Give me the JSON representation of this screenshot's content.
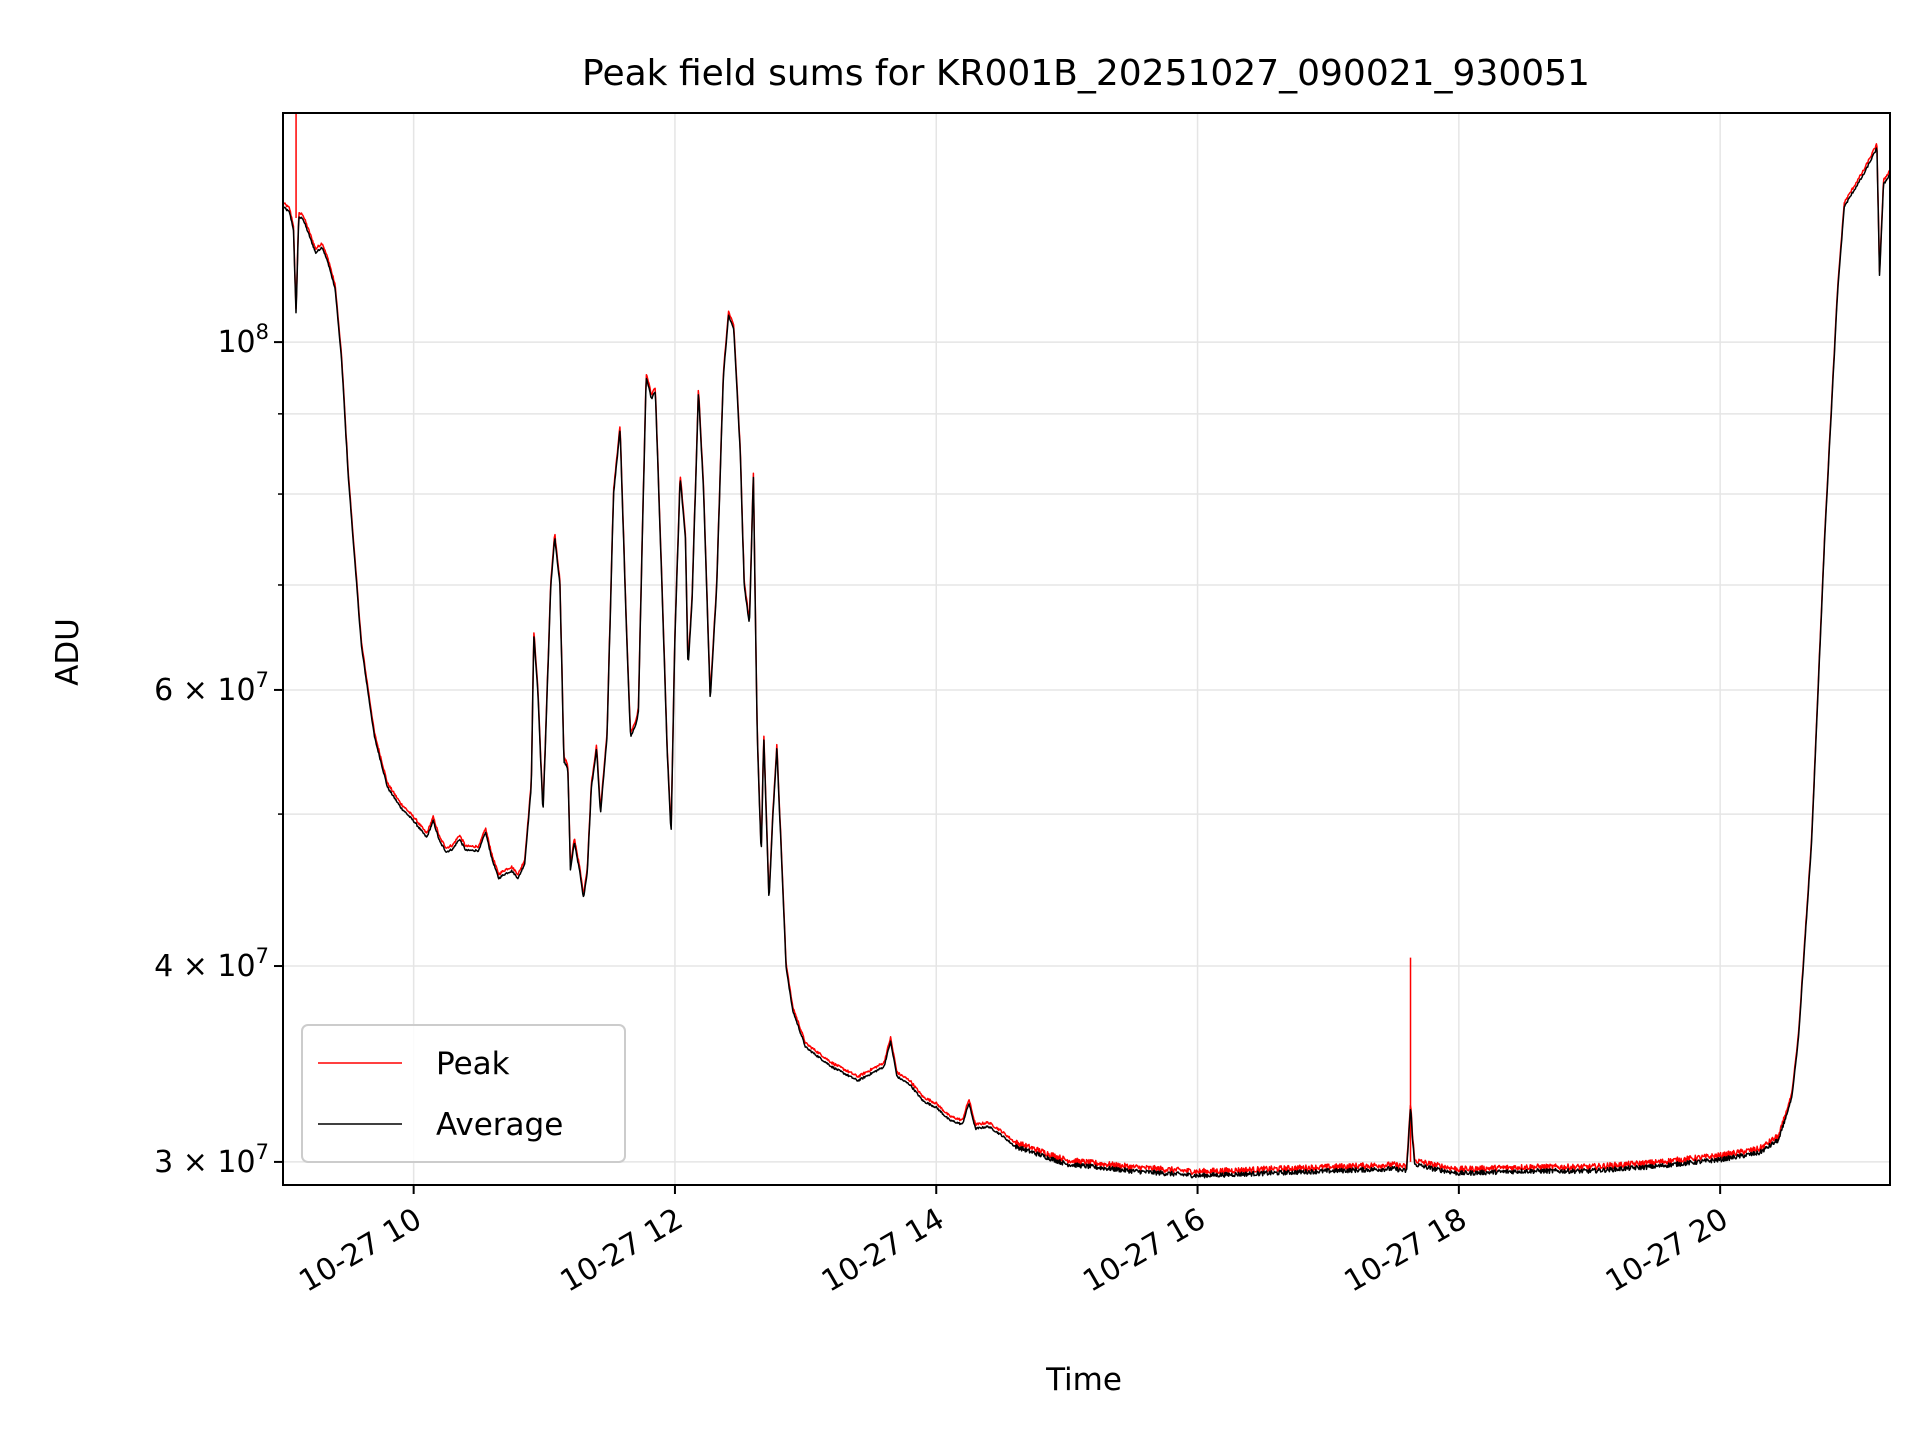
{
  "chart_data": {
    "type": "line",
    "title": "Peak field sums for KR001B_20251027_090021_930051",
    "xlabel": "Time",
    "ylabel": "ADU",
    "yscale": "log",
    "xlim": [
      9.0,
      21.3
    ],
    "ylim": [
      29000000,
      140000000
    ],
    "grid": true,
    "legend_position": "lower-left",
    "x_ticks": [
      {
        "value": 10,
        "label": "10-27 10"
      },
      {
        "value": 12,
        "label": "10-27 12"
      },
      {
        "value": 14,
        "label": "10-27 14"
      },
      {
        "value": 16,
        "label": "10-27 16"
      },
      {
        "value": 18,
        "label": "10-27 18"
      },
      {
        "value": 20,
        "label": "10-27 20"
      }
    ],
    "y_ticks": [
      {
        "value": 100000000,
        "base": "10",
        "exp": "8"
      },
      {
        "value": 60000000,
        "base": "6 × 10",
        "exp": "7"
      },
      {
        "value": 40000000,
        "base": "4 × 10",
        "exp": "7"
      },
      {
        "value": 30000000,
        "base": "3 × 10",
        "exp": "7"
      }
    ],
    "y_minor_ticks": [
      50000000,
      70000000,
      80000000,
      90000000
    ],
    "average_curve": [
      [
        9.0,
        122
      ],
      [
        9.05,
        121
      ],
      [
        9.08,
        118
      ],
      [
        9.1,
        104
      ],
      [
        9.12,
        120
      ],
      [
        9.15,
        120
      ],
      [
        9.2,
        117
      ],
      [
        9.25,
        114
      ],
      [
        9.3,
        115
      ],
      [
        9.35,
        112
      ],
      [
        9.4,
        108
      ],
      [
        9.45,
        97
      ],
      [
        9.5,
        82
      ],
      [
        9.6,
        64
      ],
      [
        9.7,
        56
      ],
      [
        9.8,
        52
      ],
      [
        9.9,
        50.5
      ],
      [
        10.0,
        49.5
      ],
      [
        10.1,
        48.3
      ],
      [
        10.15,
        49.5
      ],
      [
        10.2,
        48
      ],
      [
        10.25,
        47.3
      ],
      [
        10.3,
        47.5
      ],
      [
        10.35,
        48.2
      ],
      [
        10.4,
        47.4
      ],
      [
        10.5,
        47.4
      ],
      [
        10.55,
        48.7
      ],
      [
        10.6,
        46.8
      ],
      [
        10.65,
        45.5
      ],
      [
        10.7,
        45.8
      ],
      [
        10.75,
        46
      ],
      [
        10.8,
        45.5
      ],
      [
        10.85,
        46.5
      ],
      [
        10.9,
        52
      ],
      [
        10.92,
        65
      ],
      [
        10.95,
        60
      ],
      [
        10.99,
        50
      ],
      [
        11.05,
        70
      ],
      [
        11.08,
        75
      ],
      [
        11.12,
        70
      ],
      [
        11.15,
        54
      ],
      [
        11.18,
        53.5
      ],
      [
        11.2,
        46
      ],
      [
        11.23,
        48
      ],
      [
        11.27,
        46
      ],
      [
        11.3,
        44.2
      ],
      [
        11.33,
        46
      ],
      [
        11.36,
        52
      ],
      [
        11.4,
        55
      ],
      [
        11.43,
        50
      ],
      [
        11.48,
        56
      ],
      [
        11.53,
        80
      ],
      [
        11.58,
        88
      ],
      [
        11.63,
        65
      ],
      [
        11.66,
        56
      ],
      [
        11.7,
        57
      ],
      [
        11.72,
        58
      ],
      [
        11.75,
        75
      ],
      [
        11.78,
        95
      ],
      [
        11.82,
        92
      ],
      [
        11.85,
        93
      ],
      [
        11.9,
        70
      ],
      [
        11.94,
        55
      ],
      [
        11.97,
        48.5
      ],
      [
        12.0,
        65
      ],
      [
        12.04,
        82
      ],
      [
        12.08,
        75
      ],
      [
        12.1,
        62
      ],
      [
        12.13,
        68
      ],
      [
        12.18,
        93
      ],
      [
        12.22,
        80
      ],
      [
        12.27,
        59
      ],
      [
        12.32,
        70
      ],
      [
        12.37,
        95
      ],
      [
        12.41,
        104
      ],
      [
        12.45,
        102
      ],
      [
        12.5,
        85
      ],
      [
        12.53,
        70
      ],
      [
        12.57,
        66
      ],
      [
        12.6,
        82
      ],
      [
        12.63,
        56
      ],
      [
        12.66,
        47
      ],
      [
        12.68,
        56
      ],
      [
        12.72,
        44
      ],
      [
        12.75,
        50
      ],
      [
        12.78,
        55
      ],
      [
        12.82,
        46
      ],
      [
        12.85,
        40
      ],
      [
        12.9,
        37.5
      ],
      [
        13.0,
        35.5
      ],
      [
        13.2,
        34.5
      ],
      [
        13.4,
        33.8
      ],
      [
        13.6,
        34.5
      ],
      [
        13.65,
        35.8
      ],
      [
        13.7,
        34
      ],
      [
        13.8,
        33.6
      ],
      [
        13.9,
        32.8
      ],
      [
        14.0,
        32.5
      ],
      [
        14.1,
        31.9
      ],
      [
        14.2,
        31.7
      ],
      [
        14.25,
        32.7
      ],
      [
        14.3,
        31.5
      ],
      [
        14.4,
        31.6
      ],
      [
        14.5,
        31.2
      ],
      [
        14.6,
        30.7
      ],
      [
        14.8,
        30.3
      ],
      [
        15.0,
        29.9
      ],
      [
        15.5,
        29.6
      ],
      [
        16.0,
        29.4
      ],
      [
        16.5,
        29.5
      ],
      [
        17.0,
        29.6
      ],
      [
        17.5,
        29.7
      ],
      [
        17.6,
        29.6
      ],
      [
        17.63,
        32.5
      ],
      [
        17.66,
        29.9
      ],
      [
        17.8,
        29.7
      ],
      [
        18.0,
        29.5
      ],
      [
        18.5,
        29.6
      ],
      [
        19.0,
        29.6
      ],
      [
        19.5,
        29.8
      ],
      [
        20.0,
        30.1
      ],
      [
        20.3,
        30.4
      ],
      [
        20.45,
        31
      ],
      [
        20.55,
        33
      ],
      [
        20.6,
        36
      ],
      [
        20.7,
        48
      ],
      [
        20.8,
        75
      ],
      [
        20.9,
        108
      ],
      [
        20.95,
        122
      ],
      [
        21.0,
        124
      ],
      [
        21.1,
        128
      ],
      [
        21.2,
        133
      ],
      [
        21.22,
        110
      ],
      [
        21.25,
        126
      ],
      [
        21.3,
        128
      ]
    ],
    "series": [
      {
        "name": "Peak",
        "color": "#ff0000",
        "offset_factor": 1.006,
        "spikes": [
          {
            "x": 9.1,
            "from": 120,
            "to": 140
          },
          {
            "x": 17.63,
            "from": 30,
            "to": 40.5
          }
        ]
      },
      {
        "name": "Average",
        "color": "#000000",
        "offset_factor": 1.0,
        "spikes": []
      }
    ],
    "value_unit_multiplier": 1000000
  }
}
